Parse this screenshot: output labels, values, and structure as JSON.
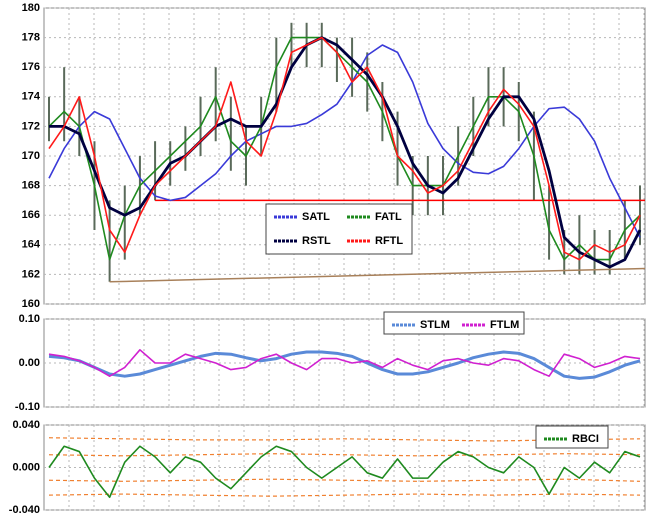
{
  "chart_data": [
    {
      "type": "line",
      "ylim": [
        160,
        180
      ],
      "yticks": [
        160,
        162,
        164,
        166,
        168,
        170,
        172,
        174,
        176,
        178,
        180
      ],
      "grid": true,
      "legend": "center",
      "price": {
        "color": "#5a6a5a",
        "high": [
          174,
          176,
          174,
          171,
          167,
          168,
          170,
          171,
          171,
          172,
          174,
          176,
          174,
          172,
          174,
          178,
          179,
          179,
          179,
          178,
          178,
          177,
          175,
          173,
          170,
          170,
          170,
          172,
          174,
          176,
          176,
          175,
          173,
          168,
          165,
          166,
          165,
          165,
          167,
          168
        ],
        "low": [
          171,
          171,
          170,
          165,
          161.5,
          163,
          166,
          167,
          168,
          169,
          170,
          171,
          169,
          168,
          170,
          173,
          176,
          176,
          176,
          175,
          174,
          173,
          171,
          168,
          166,
          166,
          166,
          168,
          170,
          172,
          172,
          171,
          167,
          163,
          162,
          162,
          162,
          162,
          163,
          164
        ]
      },
      "series": [
        {
          "name": "SATL",
          "color": "#3a3ad8",
          "values": [
            168.5,
            170.5,
            172,
            173,
            172.5,
            170.5,
            168.5,
            167.3,
            167,
            167.2,
            168,
            168.8,
            170,
            171,
            171.5,
            172,
            172,
            172.2,
            172.8,
            173.5,
            175,
            176.8,
            177.5,
            177,
            175,
            172.2,
            170.5,
            169.5,
            168.9,
            168.8,
            169.3,
            170.5,
            172,
            173.2,
            173.3,
            172.5,
            171,
            168.5,
            166.5,
            164.5
          ]
        },
        {
          "name": "FATL",
          "color": "#1f8a1f",
          "values": [
            172,
            173,
            172,
            168,
            163,
            166,
            168,
            169,
            170,
            171,
            172,
            174,
            171,
            170,
            172,
            176,
            178,
            178,
            178,
            177,
            176,
            175,
            173,
            170,
            168,
            168,
            168,
            170,
            172,
            174,
            174,
            173,
            170,
            165,
            163,
            164,
            163,
            163,
            165,
            166
          ]
        },
        {
          "name": "RSTL",
          "color": "#000040",
          "values": [
            172,
            172,
            171.5,
            169,
            166.5,
            166,
            166.5,
            168,
            169.5,
            170,
            171,
            172,
            172.5,
            172,
            172,
            173.5,
            176,
            177.5,
            178,
            177.5,
            176.5,
            175.5,
            174,
            172,
            169.5,
            168,
            167.5,
            168.5,
            170.5,
            172.5,
            174,
            174,
            172.5,
            169,
            164.5,
            163.5,
            163,
            162.5,
            163,
            165
          ]
        },
        {
          "name": "RFTL",
          "color": "#ff1a1a",
          "values": [
            170.5,
            172,
            174,
            170,
            165,
            163.5,
            166,
            168,
            169,
            170,
            171,
            172,
            175,
            171,
            170,
            173,
            177,
            177.5,
            178,
            177,
            175,
            176,
            174,
            170,
            169,
            167.5,
            168,
            169,
            171,
            173,
            174.5,
            173.5,
            172,
            168,
            163.5,
            163,
            164,
            163.5,
            164,
            166
          ]
        }
      ],
      "hline": {
        "value": 167,
        "color": "#ff0000"
      },
      "trendline": {
        "start": 161.5,
        "end": 162.4,
        "color": "#a8805a"
      }
    },
    {
      "type": "line",
      "ylim": [
        -0.1,
        0.1
      ],
      "yticks": [
        {
          "value": -0.1,
          "label": "-0.10"
        },
        {
          "value": 0,
          "label": "0.00"
        },
        {
          "value": 0.1,
          "label": "0.10"
        }
      ],
      "grid": true,
      "legend": "top-right",
      "series": [
        {
          "name": "STLM",
          "color": "#5a8ad8",
          "values": [
            0.015,
            0.012,
            0.005,
            -0.01,
            -0.025,
            -0.03,
            -0.025,
            -0.015,
            -0.005,
            0.005,
            0.015,
            0.022,
            0.02,
            0.012,
            0.005,
            0.01,
            0.02,
            0.025,
            0.025,
            0.022,
            0.015,
            0,
            -0.015,
            -0.025,
            -0.025,
            -0.02,
            -0.01,
            0,
            0.012,
            0.02,
            0.025,
            0.022,
            0.01,
            -0.01,
            -0.03,
            -0.035,
            -0.032,
            -0.02,
            -0.005,
            0.005
          ]
        },
        {
          "name": "FTLM",
          "color": "#d020d0",
          "values": [
            0.02,
            0.015,
            0.005,
            -0.01,
            -0.03,
            -0.01,
            0.03,
            0,
            0,
            0.02,
            0.01,
            0,
            -0.015,
            -0.01,
            0.01,
            0.02,
            0,
            -0.015,
            0.01,
            0.01,
            0,
            0.005,
            -0.01,
            0.01,
            -0.005,
            -0.015,
            0.005,
            0.01,
            0,
            -0.005,
            0.01,
            0.005,
            -0.015,
            -0.03,
            0.02,
            0.01,
            -0.01,
            0,
            0.015,
            0.01
          ]
        }
      ]
    },
    {
      "type": "line",
      "ylim": [
        -0.04,
        0.04
      ],
      "yticks": [
        {
          "value": -0.04,
          "label": "-0.040"
        },
        {
          "value": 0,
          "label": "0.000"
        },
        {
          "value": 0.04,
          "label": "0.040"
        }
      ],
      "grid": true,
      "legend": "top-right",
      "series": [
        {
          "name": "RBCI",
          "color": "#1f8a1f",
          "values": [
            0,
            0.02,
            0.015,
            -0.01,
            -0.028,
            0.005,
            0.02,
            0.01,
            -0.005,
            0.01,
            0.005,
            -0.01,
            -0.02,
            -0.005,
            0.01,
            0.02,
            0.015,
            0,
            -0.01,
            0,
            0.01,
            -0.005,
            -0.01,
            0.008,
            -0.01,
            -0.01,
            0.005,
            0.015,
            0.01,
            0,
            -0.005,
            0.01,
            0,
            -0.025,
            0,
            -0.01,
            0.005,
            -0.005,
            0.015,
            0.01
          ]
        }
      ],
      "bands": {
        "color": "#f08030",
        "lines": [
          [
            0.028,
            0.027,
            0.026,
            0.026,
            0.027,
            0.026,
            0.025,
            0.026,
            0.027
          ],
          [
            0.012,
            0.011,
            0.012,
            0.013,
            0.012,
            0.011,
            0.012,
            0.013,
            0.012
          ],
          [
            -0.012,
            -0.013,
            -0.012,
            -0.011,
            -0.012,
            -0.013,
            -0.012,
            -0.011,
            -0.013
          ],
          [
            -0.026,
            -0.025,
            -0.026,
            -0.027,
            -0.026,
            -0.025,
            -0.026,
            -0.025,
            -0.026
          ]
        ]
      }
    }
  ]
}
